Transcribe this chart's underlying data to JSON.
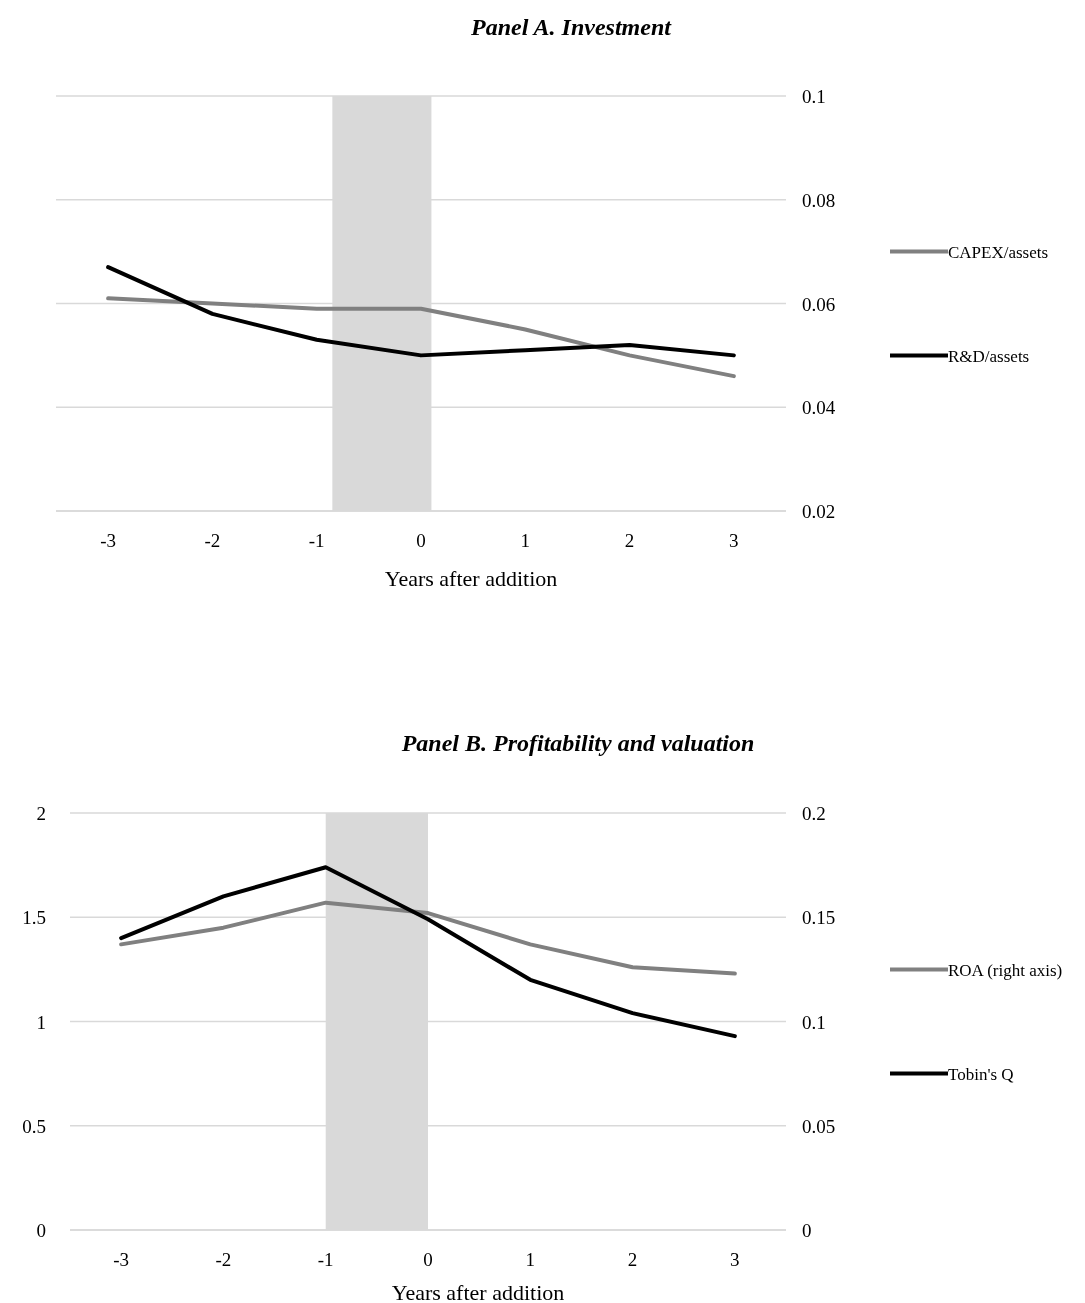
{
  "chart_data": [
    {
      "type": "line",
      "title": "Panel A. Investment",
      "xlabel": "Years after addition",
      "x": [
        -3,
        -2,
        -1,
        0,
        1,
        2,
        3
      ],
      "xlim": [
        -3.5,
        3.5
      ],
      "xticks": [
        -3,
        -2,
        -1,
        0,
        1,
        2,
        3
      ],
      "y2lim": [
        0.02,
        0.1
      ],
      "y2ticks": [
        0.02,
        0.04,
        0.06,
        0.08,
        0.1
      ],
      "grid": "y",
      "legend": "right",
      "bands": [
        {
          "axis": "x",
          "from": -0.85,
          "to": 0.1,
          "color": "#d9d9d9"
        }
      ],
      "series": [
        {
          "name": "CAPEX/assets",
          "color": "#808080",
          "axis": "y2",
          "values": [
            0.061,
            0.06,
            0.059,
            0.059,
            0.055,
            0.05,
            0.046
          ]
        },
        {
          "name": "R&D/assets",
          "color": "#000000",
          "axis": "y2",
          "values": [
            0.067,
            0.058,
            0.053,
            0.05,
            0.051,
            0.052,
            0.05
          ]
        }
      ]
    },
    {
      "type": "line",
      "title": "Panel B. Profitability and valuation",
      "xlabel": "Years after addition",
      "x": [
        -3,
        -2,
        -1,
        0,
        1,
        2,
        3
      ],
      "xlim": [
        -3.5,
        3.5
      ],
      "xticks": [
        -3,
        -2,
        -1,
        0,
        1,
        2,
        3
      ],
      "ylim": [
        0,
        2
      ],
      "yticks": [
        0,
        0.5,
        1,
        1.5,
        2
      ],
      "y2lim": [
        0,
        0.2
      ],
      "y2ticks": [
        0,
        0.05,
        0.1,
        0.15,
        0.2
      ],
      "grid": "y",
      "legend": "right",
      "bands": [
        {
          "axis": "x",
          "from": -1,
          "to": 0,
          "color": "#d9d9d9"
        }
      ],
      "series": [
        {
          "name": "ROA (right axis)",
          "color": "#808080",
          "axis": "y2",
          "values": [
            0.137,
            0.145,
            0.157,
            0.152,
            0.137,
            0.126,
            0.123
          ]
        },
        {
          "name": "Tobin's Q",
          "color": "#000000",
          "values": [
            1.4,
            1.6,
            1.74,
            1.49,
            1.2,
            1.04,
            0.93
          ]
        }
      ]
    }
  ]
}
